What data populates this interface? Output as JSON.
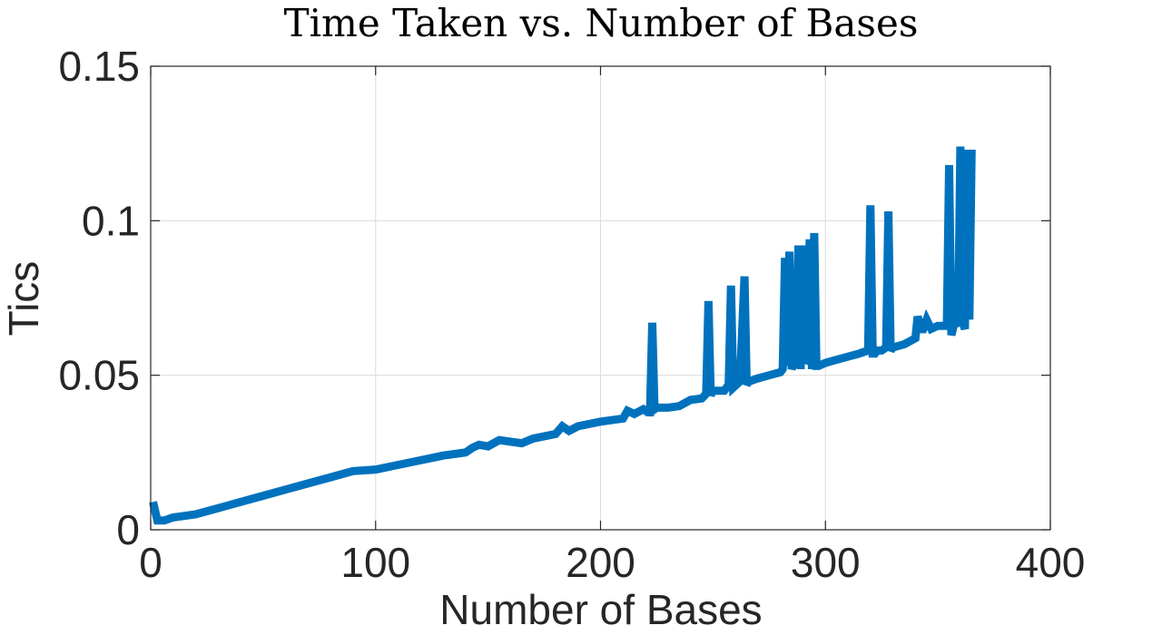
{
  "chart_data": {
    "type": "line",
    "title": "Time Taken vs. Number of Bases",
    "xlabel": "Number of Bases",
    "ylabel": "Tics",
    "xlim": [
      0,
      400
    ],
    "ylim": [
      0,
      0.15
    ],
    "xticks": [
      0,
      100,
      200,
      300,
      400
    ],
    "xtick_labels": [
      "0",
      "100",
      "200",
      "300",
      "400"
    ],
    "yticks": [
      0,
      0.05,
      0.1,
      0.15
    ],
    "ytick_labels": [
      "0",
      "0.05",
      "0.1",
      "0.15"
    ],
    "grid": true,
    "colors": {
      "series": "#0072BD",
      "axes": "#262626",
      "grid": "#dcdcdc"
    },
    "series": [
      {
        "x": [
          1,
          3,
          6,
          10,
          15,
          20,
          25,
          30,
          40,
          50,
          60,
          70,
          80,
          90,
          100,
          110,
          120,
          130,
          140,
          143,
          146,
          150,
          155,
          160,
          165,
          170,
          180,
          183,
          186,
          190,
          200,
          210,
          212,
          215,
          219,
          221,
          222,
          223,
          224,
          225,
          230,
          235,
          240,
          245,
          247,
          248,
          249,
          250,
          255,
          257,
          258,
          259,
          262,
          264,
          265,
          266,
          270,
          275,
          280,
          281,
          282,
          283,
          284,
          285,
          286,
          287,
          288,
          289,
          290,
          291,
          292,
          293,
          294,
          295,
          296,
          297,
          300,
          305,
          310,
          315,
          319,
          320,
          321,
          322,
          323,
          325,
          327,
          328,
          329,
          330,
          335,
          340,
          341,
          343,
          345,
          347,
          350,
          354,
          355,
          356,
          357,
          358,
          359,
          360,
          361,
          362,
          363,
          364,
          365
        ],
        "y": [
          0.009,
          0.003,
          0.003,
          0.004,
          0.0045,
          0.005,
          0.006,
          0.007,
          0.009,
          0.011,
          0.013,
          0.015,
          0.017,
          0.019,
          0.0195,
          0.021,
          0.0225,
          0.024,
          0.025,
          0.0265,
          0.0275,
          0.027,
          0.029,
          0.0285,
          0.028,
          0.0295,
          0.031,
          0.0335,
          0.032,
          0.0335,
          0.035,
          0.036,
          0.0385,
          0.0375,
          0.039,
          0.038,
          0.038,
          0.067,
          0.039,
          0.0395,
          0.0395,
          0.04,
          0.042,
          0.0425,
          0.044,
          0.074,
          0.0435,
          0.045,
          0.045,
          0.047,
          0.079,
          0.046,
          0.048,
          0.082,
          0.047,
          0.048,
          0.049,
          0.05,
          0.051,
          0.052,
          0.088,
          0.053,
          0.09,
          0.052,
          0.054,
          0.053,
          0.092,
          0.052,
          0.092,
          0.054,
          0.055,
          0.094,
          0.052,
          0.096,
          0.053,
          0.053,
          0.054,
          0.055,
          0.056,
          0.057,
          0.058,
          0.105,
          0.057,
          0.057,
          0.058,
          0.058,
          0.059,
          0.103,
          0.058,
          0.059,
          0.06,
          0.062,
          0.069,
          0.064,
          0.068,
          0.065,
          0.066,
          0.066,
          0.118,
          0.063,
          0.066,
          0.067,
          0.066,
          0.124,
          0.067,
          0.065,
          0.123,
          0.068,
          0.123
        ]
      }
    ]
  }
}
